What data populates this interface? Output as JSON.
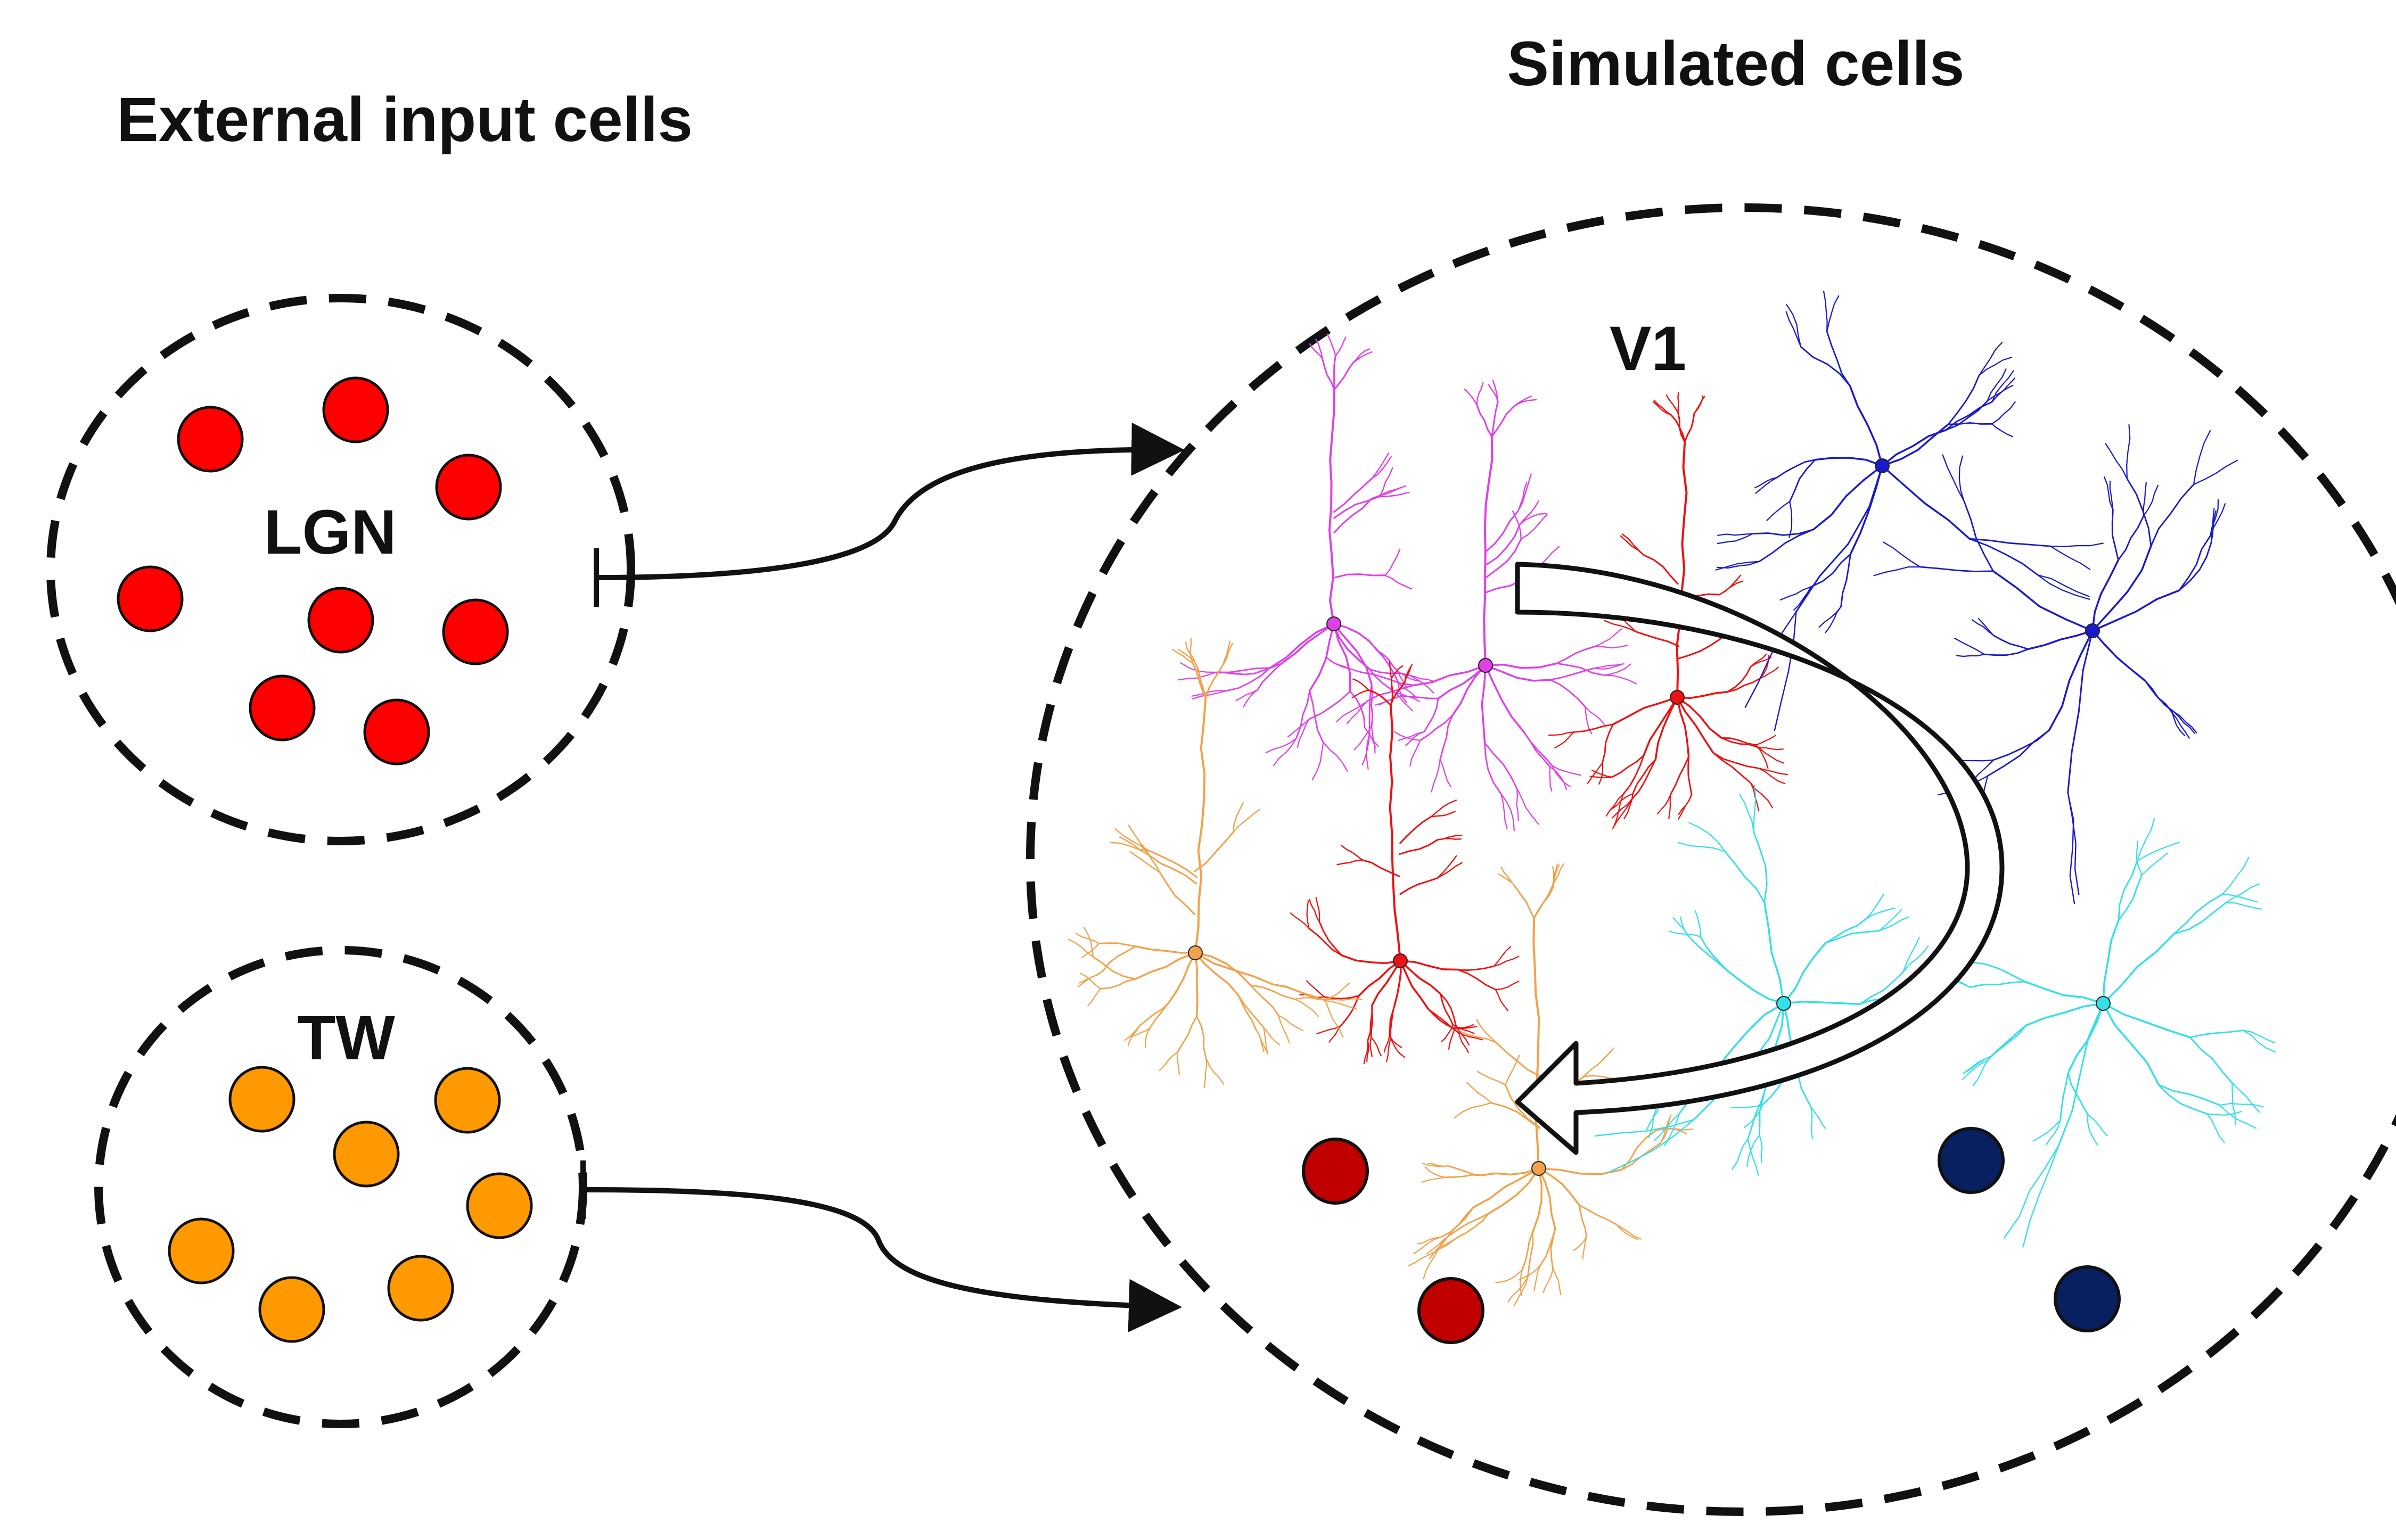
{
  "headings": {
    "external": "External input cells",
    "simulated": "Simulated cells"
  },
  "populations": {
    "lgn": {
      "label": "LGN",
      "cell_color": "#ff0000",
      "cell_count": 8
    },
    "tw": {
      "label": "TW",
      "cell_color": "#ff9900",
      "cell_count": 7
    },
    "v1": {
      "label": "V1"
    }
  },
  "colors": {
    "outline": "#111111",
    "magenta_neuron": "#e040e8",
    "red_neuron": "#ee1111",
    "blue_neuron": "#1a1acc",
    "orange_neuron": "#f2a24a",
    "cyan_neuron": "#33e0e8",
    "point_neuron_red": "#c00000",
    "point_neuron_navy": "#082060"
  },
  "icons": {
    "recurrent_arrow": "hollow-curved-arrow",
    "input_connector": "curved-arrow"
  }
}
